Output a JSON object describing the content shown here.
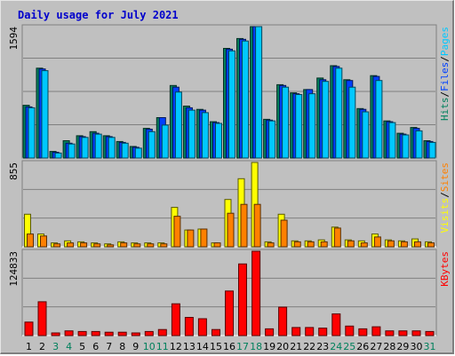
{
  "chart_data": {
    "type": "bar",
    "title": "Daily usage for July 2021",
    "days": [
      "1",
      "2",
      "3",
      "4",
      "5",
      "6",
      "7",
      "8",
      "9",
      "10",
      "11",
      "12",
      "13",
      "14",
      "15",
      "16",
      "17",
      "18",
      "19",
      "20",
      "21",
      "22",
      "23",
      "24",
      "25",
      "26",
      "27",
      "28",
      "29",
      "30",
      "31"
    ],
    "weekend_days": [
      3,
      4,
      10,
      11,
      17,
      18,
      24,
      25,
      31
    ],
    "colors": {
      "hits": "#00805c",
      "files": "#0040ff",
      "pages": "#00c8ff",
      "visits": "#ffff00",
      "sites": "#ff8000",
      "kbytes": "#ff0000",
      "weekday_label": "#000000",
      "weekend_label": "#00805c",
      "title": "#0000cc"
    },
    "panels": [
      {
        "ymax_label": "1594",
        "ymax": 1594,
        "legend": [
          {
            "text": "Hits",
            "color": "#00805c"
          },
          {
            "text": "/",
            "color": "#000000"
          },
          {
            "text": "Files",
            "color": "#0040ff"
          },
          {
            "text": "/",
            "color": "#000000"
          },
          {
            "text": "Pages",
            "color": "#00c8ff"
          }
        ],
        "series": [
          {
            "name": "Hits",
            "color": "#00805c",
            "values": [
              640,
              1090,
              80,
              210,
              270,
              320,
              270,
              200,
              140,
              360,
              490,
              880,
              630,
              590,
              440,
              1330,
              1450,
              1594,
              470,
              890,
              790,
              830,
              970,
              1120,
              950,
              600,
              1000,
              450,
              300,
              370,
              210
            ]
          },
          {
            "name": "Files",
            "color": "#0040ff",
            "values": [
              620,
              1080,
              70,
              180,
              260,
              300,
              260,
              190,
              130,
              350,
              490,
              860,
              610,
              580,
              430,
              1320,
              1440,
              1594,
              460,
              880,
              780,
              830,
              950,
              1110,
              940,
              590,
              990,
              440,
              290,
              360,
              200
            ]
          },
          {
            "name": "Pages",
            "color": "#00c8ff",
            "values": [
              610,
              1060,
              60,
              170,
              250,
              290,
              250,
              180,
              120,
              320,
              400,
              800,
              580,
              550,
              420,
              1300,
              1420,
              1594,
              450,
              860,
              770,
              780,
              930,
              1090,
              860,
              560,
              940,
              430,
              280,
              330,
              190
            ]
          }
        ]
      },
      {
        "ymax_label": "855",
        "ymax": 855,
        "legend": [
          {
            "text": "Visits",
            "color": "#ffff00"
          },
          {
            "text": "/",
            "color": "#000000"
          },
          {
            "text": "Sites",
            "color": "#ff8000"
          }
        ],
        "series": [
          {
            "name": "Visits",
            "color": "#ffff00",
            "values": [
              330,
              130,
              40,
              60,
              50,
              40,
              30,
              50,
              40,
              40,
              40,
              400,
              170,
              180,
              40,
              480,
              690,
              855,
              50,
              330,
              60,
              60,
              70,
              200,
              70,
              60,
              130,
              70,
              60,
              80,
              50
            ]
          },
          {
            "name": "Sites",
            "color": "#ff8000",
            "values": [
              130,
              110,
              30,
              40,
              40,
              30,
              20,
              40,
              30,
              30,
              30,
              310,
              170,
              180,
              40,
              340,
              430,
              430,
              40,
              270,
              50,
              50,
              50,
              190,
              60,
              40,
              100,
              60,
              50,
              50,
              40
            ]
          }
        ]
      },
      {
        "ymax_label": "124833",
        "ymax": 124833,
        "legend": [
          {
            "text": "KBytes",
            "color": "#ff0000"
          }
        ],
        "series": [
          {
            "name": "KBytes",
            "color": "#ff0000",
            "values": [
              20000,
              50000,
              4000,
              7000,
              6000,
              6000,
              5000,
              5000,
              4000,
              6000,
              9000,
              47000,
              27000,
              25000,
              9000,
              66000,
              106000,
              124833,
              10000,
              42000,
              12000,
              12000,
              11000,
              32000,
              14000,
              10000,
              13000,
              7000,
              7000,
              7000,
              6000
            ]
          }
        ]
      }
    ]
  }
}
